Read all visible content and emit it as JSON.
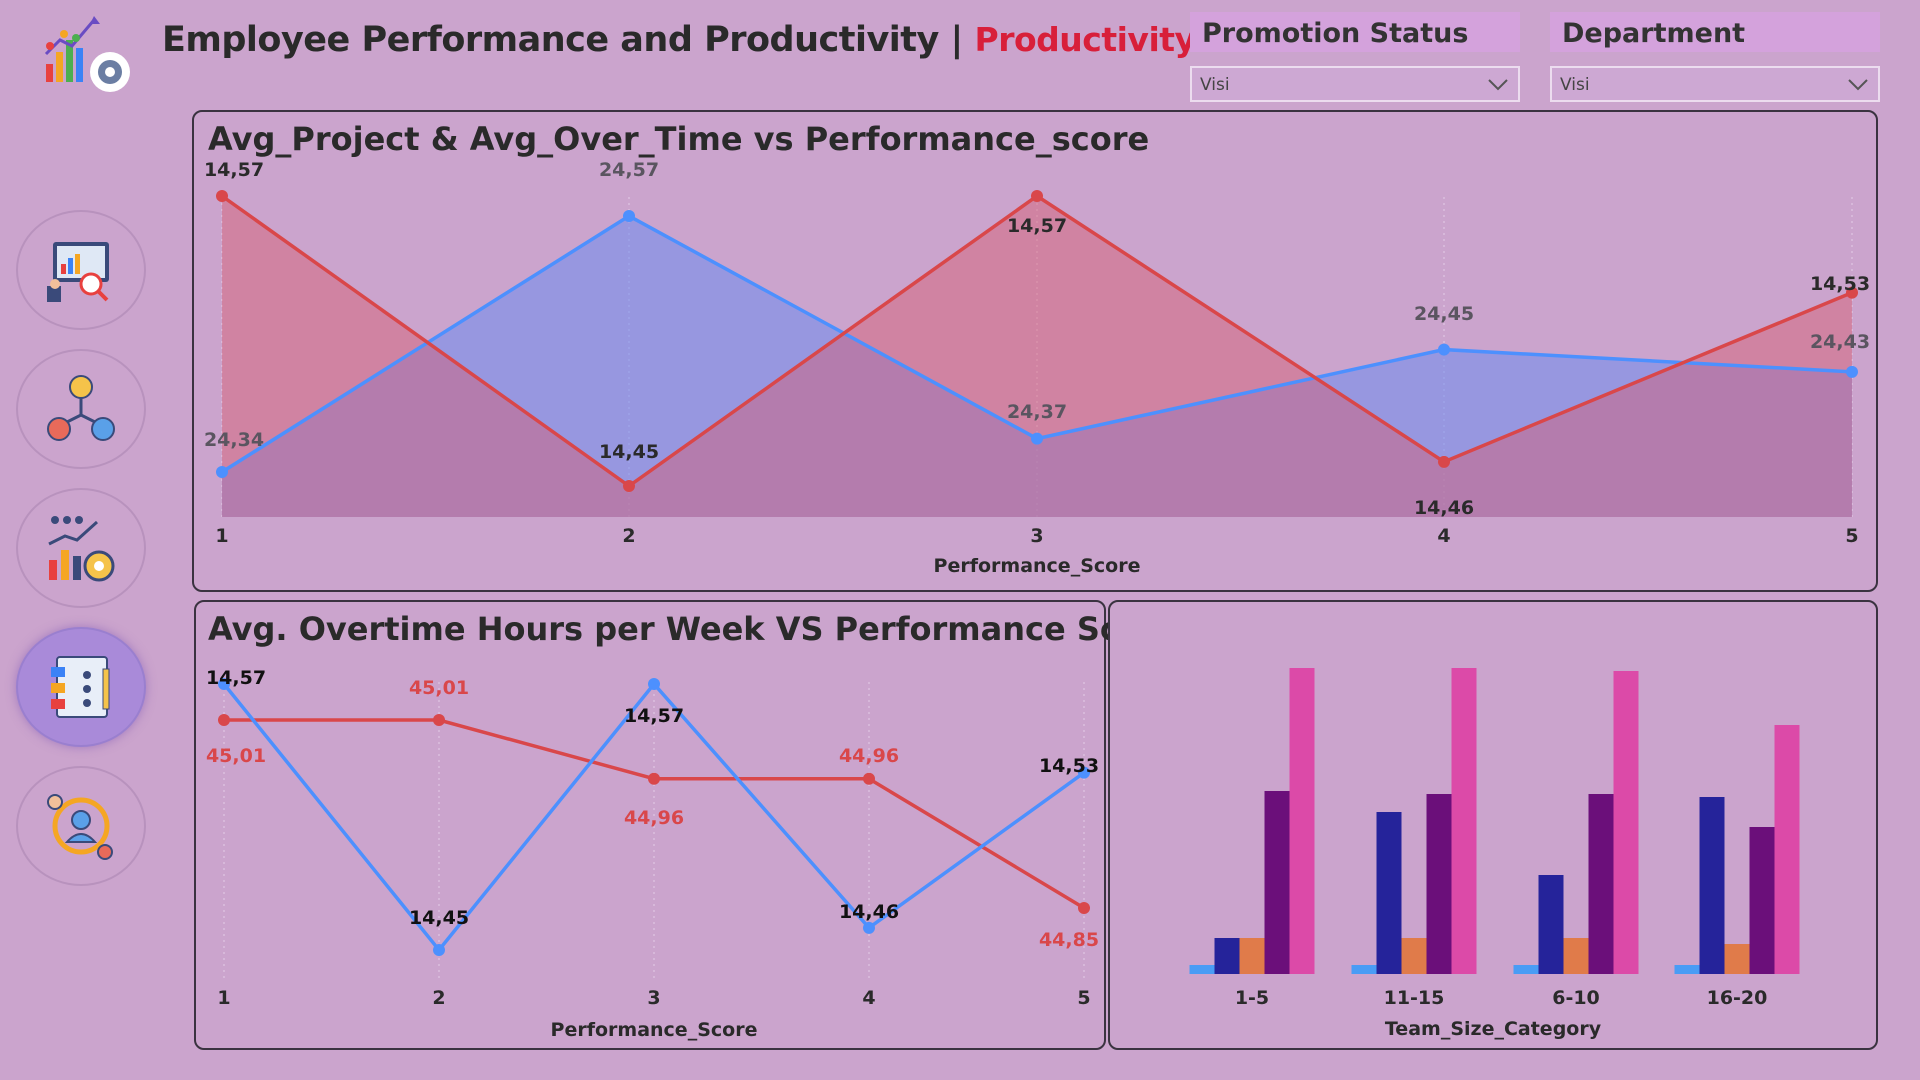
{
  "header": {
    "title": "Employee Performance and Productivity",
    "separator": "|",
    "subtitle": "Productivity"
  },
  "slicers": {
    "promotion": {
      "label": "Promotion Status",
      "value": "Visi"
    },
    "department": {
      "label": "Department",
      "value": "Visi"
    }
  },
  "nav": [
    {
      "icon": "analytics-presentation-icon"
    },
    {
      "icon": "team-network-icon"
    },
    {
      "icon": "team-growth-chart-icon"
    },
    {
      "icon": "project-planning-icon",
      "active": true
    },
    {
      "icon": "employee-cycle-icon"
    }
  ],
  "colors": {
    "blue": "#4d90fe",
    "red": "#d9474a",
    "bar_light_blue": "#4a9cf5",
    "bar_navy": "#25239a",
    "bar_orange": "#e07b4a",
    "bar_purple": "#6b0f7a",
    "bar_pink": "#dc4aa8"
  },
  "chart_data": [
    {
      "type": "area",
      "title": "Avg_Project & Avg_Over_Time vs Performance_score",
      "xlabel": "Performance_Score",
      "x": [
        "1",
        "2",
        "3",
        "4",
        "5"
      ],
      "series": [
        {
          "color": "red",
          "values": [
            14.57,
            14.45,
            14.57,
            14.46,
            14.53
          ],
          "labels": [
            "14,57",
            "14,45",
            "14,57",
            "14,46",
            "14,53"
          ]
        },
        {
          "color": "blue",
          "values": [
            24.34,
            24.57,
            24.37,
            24.45,
            24.43
          ],
          "labels": [
            "24,34",
            "24,57",
            "24,37",
            "24,45",
            "24,43"
          ]
        }
      ]
    },
    {
      "type": "line",
      "title": "Avg. Overtime Hours per Week VS Performance Score",
      "xlabel": "Performance_Score",
      "x": [
        "1",
        "2",
        "3",
        "4",
        "5"
      ],
      "series": [
        {
          "color": "blue",
          "values": [
            14.57,
            14.45,
            14.57,
            14.46,
            14.53
          ],
          "labels": [
            "14,57",
            "14,45",
            "14,57",
            "14,46",
            "14,53"
          ]
        },
        {
          "color": "red",
          "values": [
            45.01,
            45.01,
            44.96,
            44.96,
            44.85
          ],
          "labels": [
            "45,01",
            "45,01",
            "44,96",
            "44,96",
            "44,85"
          ]
        }
      ]
    },
    {
      "type": "bar",
      "xlabel": "Team_Size_Category",
      "categories": [
        "1-5",
        "11-15",
        "6-10",
        "16-20"
      ],
      "series": [
        {
          "color": "bar_light_blue",
          "values": [
            3,
            3,
            3,
            3
          ]
        },
        {
          "color": "bar_navy",
          "values": [
            12,
            54,
            33,
            59
          ]
        },
        {
          "color": "bar_orange",
          "values": [
            12,
            12,
            12,
            10
          ]
        },
        {
          "color": "bar_purple",
          "values": [
            61,
            60,
            60,
            49
          ]
        },
        {
          "color": "bar_pink",
          "values": [
            102,
            102,
            101,
            83
          ]
        }
      ],
      "ylim": [
        0,
        110
      ]
    }
  ]
}
